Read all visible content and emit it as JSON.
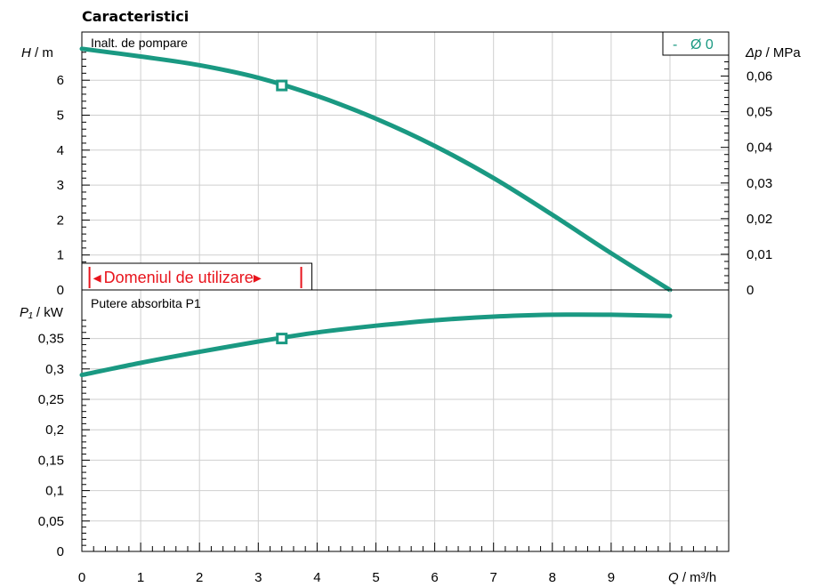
{
  "chart_data": {
    "type": "line",
    "title": "Caracteristici",
    "x": {
      "label_var": "Q",
      "label_unit": " / m³/h",
      "range": [
        0,
        11
      ],
      "ticks": [
        "0",
        "1",
        "2",
        "3",
        "4",
        "5",
        "6",
        "7",
        "8",
        "9"
      ]
    },
    "head_panel": {
      "panel_label": "Inalt. de pompare",
      "left_axis": {
        "label_var": "H",
        "label_unit": " / m",
        "range": [
          0,
          7
        ],
        "ticks": [
          "0",
          "1",
          "2",
          "3",
          "4",
          "5",
          "6"
        ]
      },
      "right_axis": {
        "label_var": "Δp",
        "label_unit": " / MPa",
        "ticks": [
          "0",
          "0,01",
          "0,02",
          "0,03",
          "0,04",
          "0,05",
          "0,06"
        ]
      },
      "series": {
        "name": "Ø 0",
        "points": [
          [
            0,
            6.9
          ],
          [
            1,
            6.68
          ],
          [
            2,
            6.43
          ],
          [
            3,
            6.07
          ],
          [
            4,
            5.55
          ],
          [
            5,
            4.9
          ],
          [
            6,
            4.12
          ],
          [
            7,
            3.2
          ],
          [
            8,
            2.15
          ],
          [
            9,
            1.05
          ],
          [
            10,
            0.0
          ]
        ]
      },
      "operating_point": [
        3.4,
        5.85
      ]
    },
    "power_panel": {
      "panel_label": "Putere absorbita P1",
      "left_axis": {
        "label_var": "P₁",
        "label_unit": " / kW",
        "range": [
          0,
          0.4
        ],
        "ticks": [
          "0",
          "0,05",
          "0,1",
          "0,15",
          "0,2",
          "0,25",
          "0,3",
          "0,35"
        ]
      },
      "series": {
        "name": "Ø 0",
        "points": [
          [
            0,
            0.29
          ],
          [
            1,
            0.31
          ],
          [
            2,
            0.328
          ],
          [
            3,
            0.345
          ],
          [
            4,
            0.36
          ],
          [
            5,
            0.371
          ],
          [
            6,
            0.38
          ],
          [
            7,
            0.386
          ],
          [
            8,
            0.389
          ],
          [
            9,
            0.389
          ],
          [
            10,
            0.387
          ]
        ]
      },
      "operating_point": [
        3.4,
        0.35
      ]
    },
    "operating_range_label": "Domeniul de utilizare",
    "operating_range_arrow_left": "◂",
    "operating_range_arrow_right": "▸",
    "operating_range_q": [
      0.13,
      3.73
    ],
    "legend": {
      "dash": "-",
      "text": "Ø 0",
      "placement": "top-right"
    },
    "curve_color": "#1a9982",
    "range_color": "#e8141c",
    "grid": true
  }
}
